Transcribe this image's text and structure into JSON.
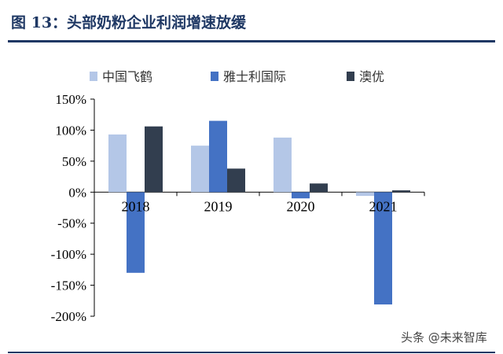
{
  "figure": {
    "title": "图 13：头部奶粉企业利润增速放缓",
    "watermark": "头条 @未来智库"
  },
  "chart_data": {
    "type": "bar",
    "categories": [
      "2018",
      "2019",
      "2020",
      "2021"
    ],
    "series": [
      {
        "name": "中国飞鹤",
        "color": "#b4c7e7",
        "values": [
          93,
          75,
          88,
          -6
        ]
      },
      {
        "name": "雅士利国际",
        "color": "#4472c4",
        "values": [
          -130,
          115,
          -10,
          -181
        ]
      },
      {
        "name": "澳优",
        "color": "#323e4f",
        "values": [
          106,
          38,
          14,
          3
        ]
      }
    ],
    "ylim": [
      -200,
      150
    ],
    "yticks": [
      -200,
      -150,
      -100,
      -50,
      0,
      50,
      100,
      150
    ],
    "ytick_labels": [
      "-200%",
      "-150%",
      "-100%",
      "-50%",
      "0%",
      "50%",
      "100%",
      "150%"
    ],
    "legend_position": "top",
    "grid": false,
    "xlabel": "",
    "ylabel": ""
  }
}
